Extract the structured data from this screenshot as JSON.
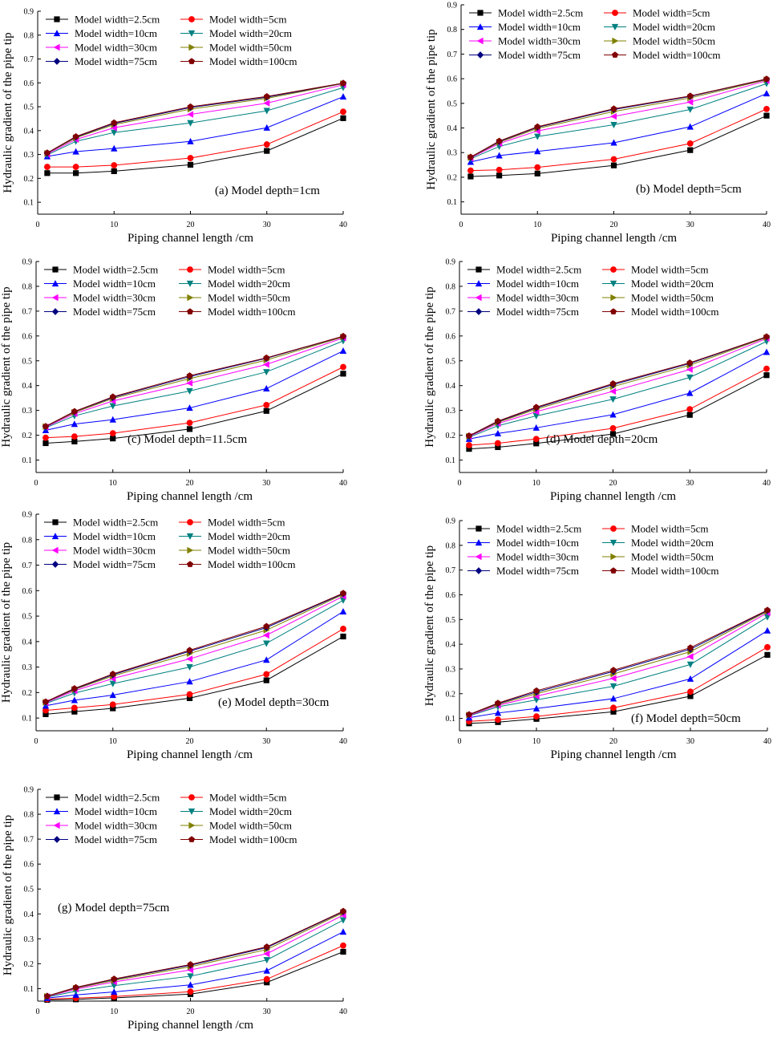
{
  "chart_data": {
    "type": "line",
    "x": [
      1.25,
      5,
      10,
      20,
      30,
      40
    ],
    "xlim": [
      0,
      40
    ],
    "ylim": [
      0.05,
      0.9
    ],
    "xticks": [
      0,
      10,
      20,
      30,
      40
    ],
    "yticks": [
      0.1,
      0.2,
      0.3,
      0.4,
      0.5,
      0.6,
      0.7,
      0.8,
      0.9
    ],
    "xlabel": "Piping channel length /cm",
    "ylabel": "Hydraulic gradient of the pipe tip",
    "series_styles": [
      {
        "name": "Model width=2.5cm",
        "color": "#000000",
        "marker": "square"
      },
      {
        "name": "Model width=5cm",
        "color": "#ff0000",
        "marker": "circle"
      },
      {
        "name": "Model width=10cm",
        "color": "#0000ff",
        "marker": "triangle-up"
      },
      {
        "name": "Model width=20cm",
        "color": "#008080",
        "marker": "triangle-down"
      },
      {
        "name": "Model width=30cm",
        "color": "#ff00ff",
        "marker": "triangle-left"
      },
      {
        "name": "Model width=50cm",
        "color": "#808000",
        "marker": "triangle-right"
      },
      {
        "name": "Model width=75cm",
        "color": "#000080",
        "marker": "diamond"
      },
      {
        "name": "Model width=100cm",
        "color": "#800000",
        "marker": "pentagon"
      }
    ],
    "panels": [
      {
        "label": "(a) Model depth=1cm",
        "series": [
          {
            "name": "Model width=2.5cm",
            "values": [
              0.222,
              0.222,
              0.23,
              0.257,
              0.315,
              0.452
            ]
          },
          {
            "name": "Model width=5cm",
            "values": [
              0.248,
              0.248,
              0.255,
              0.285,
              0.342,
              0.479
            ]
          },
          {
            "name": "Model width=10cm",
            "values": [
              0.292,
              0.312,
              0.325,
              0.355,
              0.412,
              0.542
            ]
          },
          {
            "name": "Model width=20cm",
            "values": [
              0.298,
              0.355,
              0.392,
              0.432,
              0.483,
              0.58
            ]
          },
          {
            "name": "Model width=30cm",
            "values": [
              0.302,
              0.363,
              0.412,
              0.468,
              0.515,
              0.592
            ]
          },
          {
            "name": "Model width=50cm",
            "values": [
              0.305,
              0.37,
              0.425,
              0.49,
              0.535,
              0.597
            ]
          },
          {
            "name": "Model width=75cm",
            "values": [
              0.306,
              0.373,
              0.43,
              0.497,
              0.54,
              0.598
            ]
          },
          {
            "name": "Model width=100cm",
            "values": [
              0.307,
              0.375,
              0.433,
              0.5,
              0.543,
              0.599
            ]
          }
        ]
      },
      {
        "label": "(b) Model depth=5cm",
        "series": [
          {
            "name": "Model width=2.5cm",
            "values": [
              0.203,
              0.207,
              0.215,
              0.248,
              0.31,
              0.45
            ]
          },
          {
            "name": "Model width=5cm",
            "values": [
              0.227,
              0.23,
              0.24,
              0.273,
              0.337,
              0.477
            ]
          },
          {
            "name": "Model width=10cm",
            "values": [
              0.262,
              0.288,
              0.305,
              0.34,
              0.405,
              0.54
            ]
          },
          {
            "name": "Model width=20cm",
            "values": [
              0.275,
              0.325,
              0.365,
              0.413,
              0.475,
              0.58
            ]
          },
          {
            "name": "Model width=30cm",
            "values": [
              0.278,
              0.337,
              0.388,
              0.447,
              0.505,
              0.592
            ]
          },
          {
            "name": "Model width=50cm",
            "values": [
              0.28,
              0.342,
              0.398,
              0.467,
              0.522,
              0.596
            ]
          },
          {
            "name": "Model width=75cm",
            "values": [
              0.281,
              0.345,
              0.403,
              0.475,
              0.528,
              0.598
            ]
          },
          {
            "name": "Model width=100cm",
            "values": [
              0.282,
              0.347,
              0.405,
              0.478,
              0.53,
              0.599
            ]
          }
        ]
      },
      {
        "label": "(c) Model depth=11.5cm",
        "series": [
          {
            "name": "Model width=2.5cm",
            "values": [
              0.168,
              0.175,
              0.187,
              0.225,
              0.298,
              0.448
            ]
          },
          {
            "name": "Model width=5cm",
            "values": [
              0.19,
              0.195,
              0.208,
              0.25,
              0.322,
              0.475
            ]
          },
          {
            "name": "Model width=10cm",
            "values": [
              0.22,
              0.245,
              0.263,
              0.31,
              0.388,
              0.54
            ]
          },
          {
            "name": "Model width=20cm",
            "values": [
              0.23,
              0.278,
              0.318,
              0.378,
              0.455,
              0.58
            ]
          },
          {
            "name": "Model width=30cm",
            "values": [
              0.233,
              0.287,
              0.338,
              0.41,
              0.485,
              0.592
            ]
          },
          {
            "name": "Model width=50cm",
            "values": [
              0.235,
              0.292,
              0.348,
              0.428,
              0.503,
              0.596
            ]
          },
          {
            "name": "Model width=75cm",
            "values": [
              0.235,
              0.295,
              0.352,
              0.436,
              0.51,
              0.598
            ]
          },
          {
            "name": "Model width=100cm",
            "values": [
              0.236,
              0.296,
              0.355,
              0.44,
              0.512,
              0.599
            ]
          }
        ]
      },
      {
        "label": "(d) Model depth=20cm",
        "series": [
          {
            "name": "Model width=2.5cm",
            "values": [
              0.145,
              0.152,
              0.167,
              0.205,
              0.282,
              0.442
            ]
          },
          {
            "name": "Model width=5cm",
            "values": [
              0.16,
              0.168,
              0.185,
              0.228,
              0.305,
              0.468
            ]
          },
          {
            "name": "Model width=10cm",
            "values": [
              0.185,
              0.207,
              0.23,
              0.283,
              0.37,
              0.535
            ]
          },
          {
            "name": "Model width=20cm",
            "values": [
              0.192,
              0.238,
              0.278,
              0.345,
              0.433,
              0.578
            ]
          },
          {
            "name": "Model width=30cm",
            "values": [
              0.195,
              0.247,
              0.295,
              0.377,
              0.465,
              0.59
            ]
          },
          {
            "name": "Model width=50cm",
            "values": [
              0.196,
              0.252,
              0.305,
              0.396,
              0.482,
              0.594
            ]
          },
          {
            "name": "Model width=75cm",
            "values": [
              0.197,
              0.255,
              0.31,
              0.404,
              0.489,
              0.596
            ]
          },
          {
            "name": "Model width=100cm",
            "values": [
              0.198,
              0.257,
              0.313,
              0.408,
              0.492,
              0.597
            ]
          }
        ]
      },
      {
        "label": "(e) Model depth=30cm",
        "series": [
          {
            "name": "Model width=2.5cm",
            "values": [
              0.115,
              0.125,
              0.138,
              0.178,
              0.248,
              0.42
            ]
          },
          {
            "name": "Model width=5cm",
            "values": [
              0.13,
              0.14,
              0.153,
              0.193,
              0.272,
              0.45
            ]
          },
          {
            "name": "Model width=10cm",
            "values": [
              0.148,
              0.17,
              0.19,
              0.243,
              0.328,
              0.518
            ]
          },
          {
            "name": "Model width=20cm",
            "values": [
              0.157,
              0.198,
              0.235,
              0.3,
              0.393,
              0.562
            ]
          },
          {
            "name": "Model width=30cm",
            "values": [
              0.16,
              0.207,
              0.255,
              0.332,
              0.425,
              0.578
            ]
          },
          {
            "name": "Model width=50cm",
            "values": [
              0.162,
              0.212,
              0.265,
              0.353,
              0.445,
              0.585
            ]
          },
          {
            "name": "Model width=75cm",
            "values": [
              0.163,
              0.214,
              0.27,
              0.362,
              0.455,
              0.588
            ]
          },
          {
            "name": "Model width=100cm",
            "values": [
              0.164,
              0.216,
              0.273,
              0.366,
              0.46,
              0.59
            ]
          }
        ]
      },
      {
        "label": "(f) Model depth=50cm",
        "series": [
          {
            "name": "Model width=2.5cm",
            "values": [
              0.08,
              0.085,
              0.098,
              0.127,
              0.19,
              0.357
            ]
          },
          {
            "name": "Model width=5cm",
            "values": [
              0.088,
              0.095,
              0.108,
              0.143,
              0.208,
              0.388
            ]
          },
          {
            "name": "Model width=10cm",
            "values": [
              0.103,
              0.122,
              0.14,
              0.18,
              0.26,
              0.455
            ]
          },
          {
            "name": "Model width=20cm",
            "values": [
              0.11,
              0.147,
              0.175,
              0.23,
              0.318,
              0.51
            ]
          },
          {
            "name": "Model width=30cm",
            "values": [
              0.112,
              0.153,
              0.19,
              0.262,
              0.35,
              0.527
            ]
          },
          {
            "name": "Model width=50cm",
            "values": [
              0.114,
              0.157,
              0.2,
              0.28,
              0.37,
              0.533
            ]
          },
          {
            "name": "Model width=75cm",
            "values": [
              0.115,
              0.16,
              0.207,
              0.29,
              0.38,
              0.536
            ]
          },
          {
            "name": "Model width=100cm",
            "values": [
              0.116,
              0.162,
              0.212,
              0.295,
              0.386,
              0.538
            ]
          }
        ]
      },
      {
        "label": "(g) Model depth=75cm",
        "series": [
          {
            "name": "Model width=2.5cm",
            "values": [
              0.055,
              0.057,
              0.063,
              0.078,
              0.125,
              0.248
            ]
          },
          {
            "name": "Model width=5cm",
            "values": [
              0.058,
              0.062,
              0.068,
              0.088,
              0.138,
              0.273
            ]
          },
          {
            "name": "Model width=10cm",
            "values": [
              0.062,
              0.075,
              0.087,
              0.115,
              0.172,
              0.328
            ]
          },
          {
            "name": "Model width=20cm",
            "values": [
              0.066,
              0.09,
              0.112,
              0.15,
              0.215,
              0.375
            ]
          },
          {
            "name": "Model width=30cm",
            "values": [
              0.068,
              0.098,
              0.127,
              0.175,
              0.24,
              0.395
            ]
          },
          {
            "name": "Model width=50cm",
            "values": [
              0.069,
              0.102,
              0.133,
              0.188,
              0.257,
              0.405
            ]
          },
          {
            "name": "Model width=75cm",
            "values": [
              0.07,
              0.104,
              0.137,
              0.194,
              0.265,
              0.409
            ]
          },
          {
            "name": "Model width=100cm",
            "values": [
              0.07,
              0.105,
              0.139,
              0.197,
              0.268,
              0.411
            ]
          }
        ]
      }
    ]
  }
}
